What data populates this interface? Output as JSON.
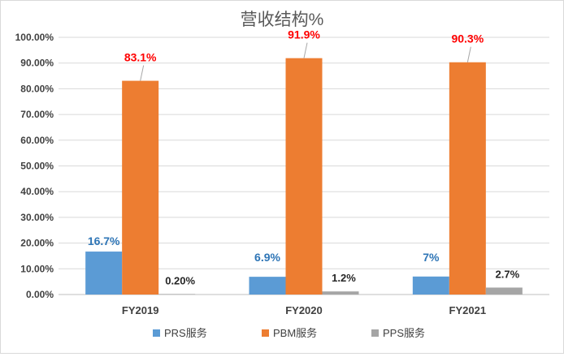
{
  "chart_data": {
    "type": "bar",
    "title": "营收结构%",
    "categories": [
      "FY2019",
      "FY2020",
      "FY2021"
    ],
    "series": [
      {
        "name": "PRS服务",
        "color": "#5b9bd5",
        "label_color": "#2e75b6",
        "values": [
          16.7,
          6.9,
          7.0
        ],
        "labels": [
          "16.7%",
          "6.9%",
          "7%"
        ]
      },
      {
        "name": "PBM服务",
        "color": "#ed7d31",
        "label_color": "#ff0000",
        "values": [
          83.1,
          91.9,
          90.3
        ],
        "labels": [
          "83.1%",
          "91.9%",
          "90.3%"
        ]
      },
      {
        "name": "PPS服务",
        "color": "#a5a5a5",
        "label_color": "#262626",
        "values": [
          0.2,
          1.2,
          2.7
        ],
        "labels": [
          "0.20%",
          "1.2%",
          "2.7%"
        ]
      }
    ],
    "y_ticks": [
      "0.00%",
      "10.00%",
      "20.00%",
      "30.00%",
      "40.00%",
      "50.00%",
      "60.00%",
      "70.00%",
      "80.00%",
      "90.00%",
      "100.00%"
    ],
    "ylim": [
      0,
      100
    ],
    "grid": true,
    "legend_position": "bottom"
  }
}
